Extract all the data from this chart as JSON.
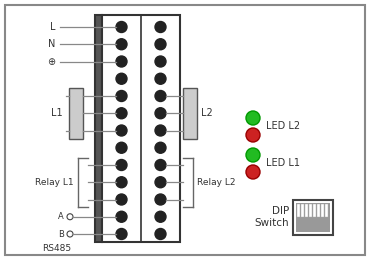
{
  "labels_left": [
    "L",
    "N",
    "⊕"
  ],
  "labels_l1": "L1",
  "labels_l2": "L2",
  "labels_relay_l1": "Relay L1",
  "labels_relay_l2": "Relay L2",
  "labels_rs485": "RS485",
  "labels_a": "A",
  "labels_b": "B",
  "led_l2_green": "#22bb22",
  "led_l2_red": "#cc2222",
  "led_l1_green": "#22bb22",
  "led_l1_red": "#cc2222",
  "led_label_l2": "LED L2",
  "led_label_l1": "LED L1",
  "dip_label_line1": "DIP",
  "dip_label_line2": "Switch",
  "num_rows": 13
}
